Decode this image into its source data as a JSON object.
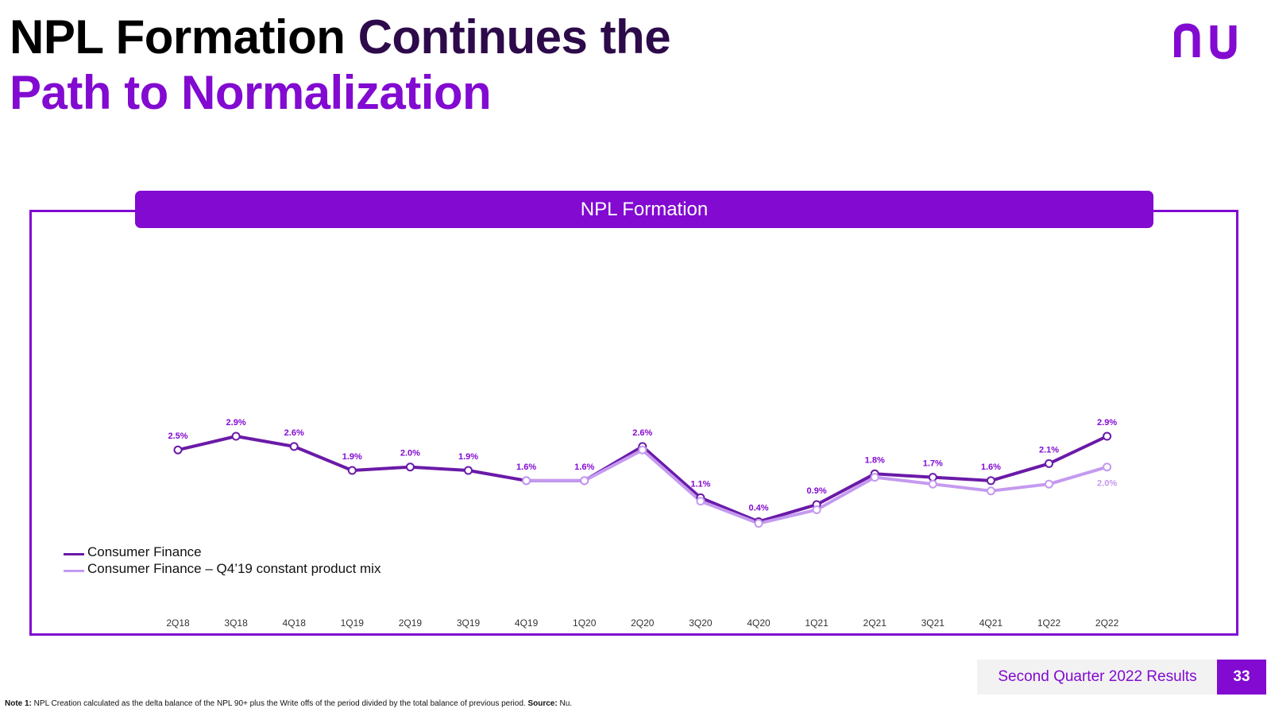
{
  "title": {
    "part1": "NPL Formation ",
    "part2": "Continues the",
    "part3": "Path to Normalization"
  },
  "logo": {
    "icon": "nu-logo-icon",
    "text": "nu"
  },
  "colors": {
    "brand": "#820ad1",
    "dark_series": "#6a1aa8",
    "light_series": "#c49af0",
    "dark_text": "#2d0a4a"
  },
  "footer": {
    "label": "Second Quarter 2022 Results",
    "page": "33",
    "note_label": "Note 1:",
    "note_text": " NPL Creation calculated as the delta balance of the NPL 90+ plus the Write offs of the period divided by the total balance of previous period. ",
    "source_label": "Source:",
    "source_text": " Nu."
  },
  "chart_data": {
    "type": "line",
    "title": "NPL Formation",
    "xlabel": "",
    "ylabel": "",
    "ylim": [
      0,
      3.5
    ],
    "grid": false,
    "legend_position": "bottom-left",
    "categories": [
      "2Q18",
      "3Q18",
      "4Q18",
      "1Q19",
      "2Q19",
      "3Q19",
      "4Q19",
      "1Q20",
      "2Q20",
      "3Q20",
      "4Q20",
      "1Q21",
      "2Q21",
      "3Q21",
      "4Q21",
      "1Q22",
      "2Q22"
    ],
    "series": [
      {
        "name": "Consumer Finance",
        "values": [
          2.5,
          2.9,
          2.6,
          1.9,
          2.0,
          1.9,
          1.6,
          1.6,
          2.6,
          1.1,
          0.4,
          0.9,
          1.8,
          1.7,
          1.6,
          2.1,
          2.9
        ],
        "labels": [
          "2.5%",
          "2.9%",
          "2.6%",
          "1.9%",
          "2.0%",
          "1.9%",
          "1.6%",
          "1.6%",
          "2.6%",
          "1.1%",
          "0.4%",
          "0.9%",
          "1.8%",
          "1.7%",
          "1.6%",
          "2.1%",
          "2.9%"
        ]
      },
      {
        "name": "Consumer Finance – Q4’19 constant product mix",
        "values": [
          null,
          null,
          null,
          null,
          null,
          null,
          1.6,
          1.6,
          2.5,
          1.0,
          0.35,
          0.75,
          1.7,
          1.5,
          1.3,
          1.5,
          2.0
        ],
        "labels": [
          null,
          null,
          null,
          null,
          null,
          null,
          null,
          null,
          null,
          null,
          null,
          null,
          null,
          null,
          null,
          null,
          "2.0%"
        ]
      }
    ]
  }
}
